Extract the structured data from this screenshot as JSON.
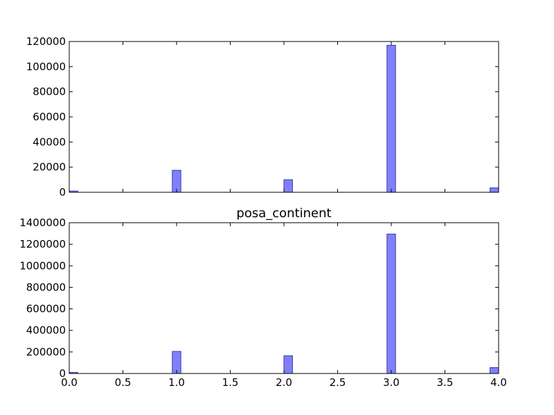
{
  "chart_data": [
    {
      "type": "bar",
      "title": "",
      "xlabel": "",
      "ylabel": "",
      "xlim": [
        0,
        4
      ],
      "ylim": [
        0,
        120000
      ],
      "xticks": [],
      "yticks": [
        "0",
        "20000",
        "40000",
        "60000",
        "80000",
        "100000",
        "120000"
      ],
      "bin_width": 0.08,
      "bars": [
        {
          "x": 0.0,
          "value": 1000
        },
        {
          "x": 0.96,
          "value": 17500
        },
        {
          "x": 2.0,
          "value": 10000
        },
        {
          "x": 2.96,
          "value": 117000
        },
        {
          "x": 3.92,
          "value": 3500
        }
      ],
      "colors": {
        "fill": "#8080ff",
        "edge": "#3b3b9e"
      }
    },
    {
      "type": "bar",
      "title": "posa_continent",
      "xlabel": "",
      "ylabel": "",
      "xlim": [
        0,
        4
      ],
      "ylim": [
        0,
        1400000
      ],
      "xticks": [
        "0.0",
        "0.5",
        "1.0",
        "1.5",
        "2.0",
        "2.5",
        "3.0",
        "3.5",
        "4.0"
      ],
      "yticks": [
        "0",
        "200000",
        "400000",
        "600000",
        "800000",
        "1000000",
        "1200000",
        "1400000"
      ],
      "bin_width": 0.08,
      "bars": [
        {
          "x": 0.0,
          "value": 10000
        },
        {
          "x": 0.96,
          "value": 205000
        },
        {
          "x": 2.0,
          "value": 165000
        },
        {
          "x": 2.96,
          "value": 1295000
        },
        {
          "x": 3.92,
          "value": 55000
        }
      ],
      "colors": {
        "fill": "#8080ff",
        "edge": "#3b3b9e"
      }
    }
  ]
}
